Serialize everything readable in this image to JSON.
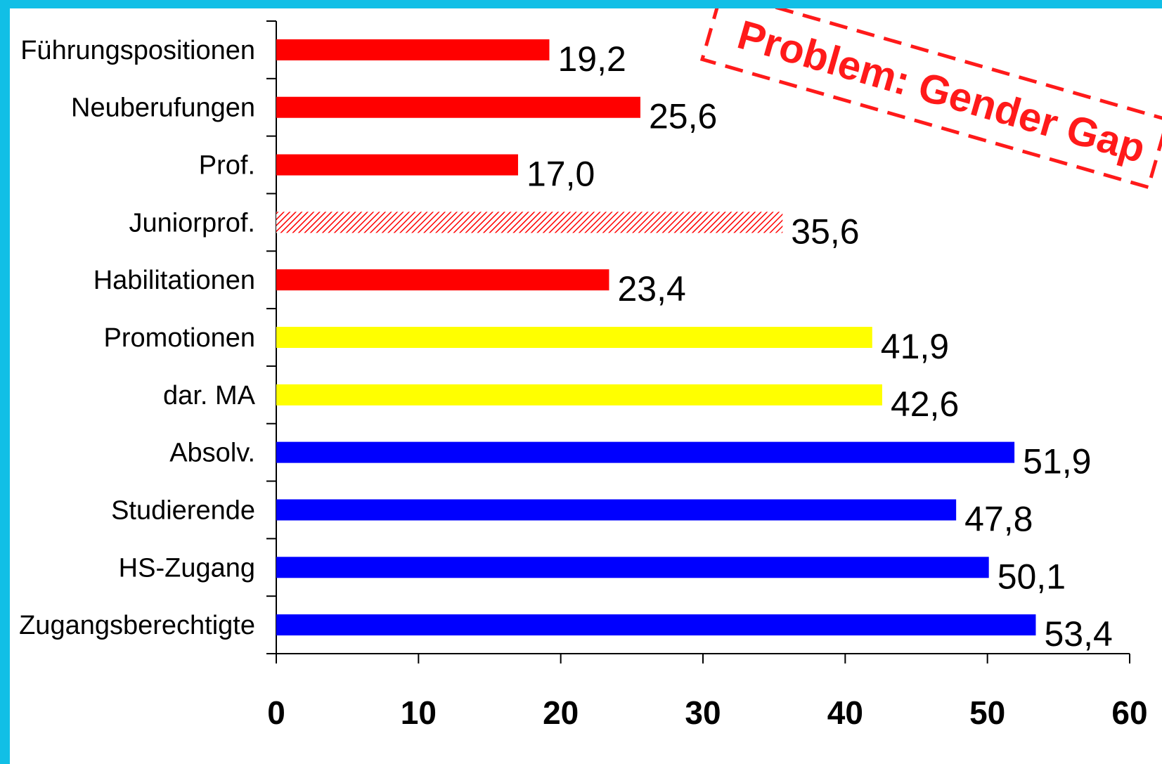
{
  "chart_data": {
    "type": "bar",
    "orientation": "horizontal",
    "categories": [
      "Führungspositionen",
      "Neuberufungen",
      "Prof.",
      "Juniorprof.",
      "Habilitationen",
      "Promotionen",
      "dar. MA",
      "Absolv.",
      "Studierende",
      "HS-Zugang",
      "Zugangsberechtigte"
    ],
    "values": [
      19.2,
      25.6,
      17.0,
      35.6,
      23.4,
      41.9,
      42.6,
      51.9,
      47.8,
      50.1,
      53.4
    ],
    "value_labels": [
      "19,2",
      "25,6",
      "17,0",
      "35,6",
      "23,4",
      "41,9",
      "42,6",
      "51,9",
      "47,8",
      "50,1",
      "53,4"
    ],
    "bar_styles": [
      "red",
      "red",
      "red",
      "red-hatched",
      "red",
      "yellow",
      "yellow",
      "blue",
      "blue",
      "blue",
      "blue"
    ],
    "colors": {
      "red": "#ff0000",
      "yellow": "#ffff00",
      "blue": "#0000ff",
      "frame": "#11bfe6"
    },
    "xlim": [
      0,
      60
    ],
    "x_ticks": [
      0,
      10,
      20,
      30,
      40,
      50,
      60
    ],
    "x_tick_labels": [
      "0",
      "10",
      "20",
      "30",
      "40",
      "50",
      "60"
    ],
    "grid": false,
    "legend": "none",
    "annotation": "Problem: Gender Gap"
  }
}
